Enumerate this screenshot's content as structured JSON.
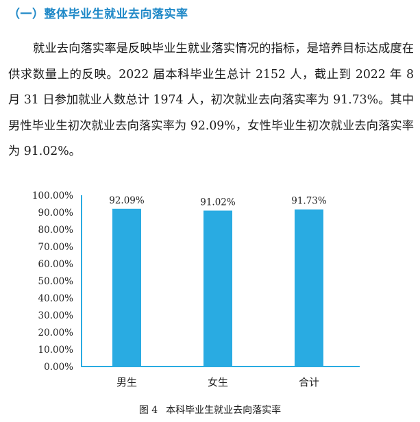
{
  "section_title": "（一）整体毕业生就业去向落实率",
  "paragraph": "就业去向落实率是反映毕业生就业落实情况的指标，是培养目标达成度在供求数量上的反映。2022 届本科毕业生总计 2152 人，截止到 2022 年 8 月 31 日参加就业人数总计 1974 人，初次就业去向落实率为 91.73%。其中男性毕业生初次就业去向落实率为 92.09%，女性毕业生初次就业去向落实率为 91.02%。",
  "figure_caption": {
    "number": "图 4",
    "title": "本科毕业生就业去向落实率"
  },
  "colors": {
    "title": "#1e88c7",
    "bar": "#29abe2",
    "axis": "#29abe2"
  },
  "chart_data": {
    "type": "bar",
    "categories": [
      "男生",
      "女生",
      "合计"
    ],
    "values": [
      92.09,
      91.02,
      91.73
    ],
    "data_labels": [
      "92.09%",
      "91.02%",
      "91.73%"
    ],
    "yticks": [
      "0.00%",
      "10.00%",
      "20.00%",
      "30.00%",
      "40.00%",
      "50.00%",
      "60.00%",
      "70.00%",
      "80.00%",
      "90.00%",
      "100.00%"
    ],
    "ylim": [
      0,
      100
    ],
    "title": "",
    "xlabel": "",
    "ylabel": "",
    "grid": false,
    "legend": "none"
  }
}
